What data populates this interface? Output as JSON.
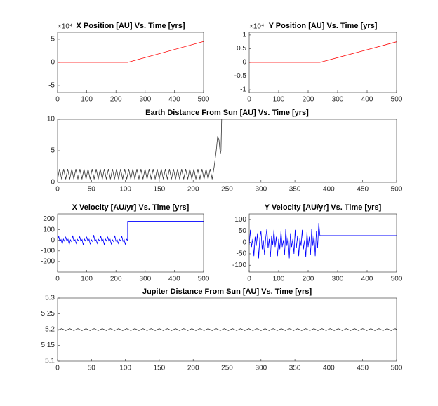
{
  "chart_data": [
    {
      "type": "line",
      "title": "X Position [AU] Vs. Time [yrs]",
      "exponent_label": "×10⁴",
      "color": "#ff0000",
      "x": [
        0,
        240,
        500
      ],
      "values": [
        0,
        0,
        4.5
      ],
      "xlim": [
        0,
        500
      ],
      "ylim": [
        -6.5,
        6.5
      ],
      "xticks": [
        0,
        100,
        200,
        300,
        400,
        500
      ],
      "yticks": [
        -5,
        0,
        5
      ]
    },
    {
      "type": "line",
      "title": "Y Position [AU] Vs. Time [yrs]",
      "exponent_label": "×10⁴",
      "color": "#ff0000",
      "x": [
        0,
        240,
        500
      ],
      "values": [
        0,
        0,
        0.75
      ],
      "xlim": [
        0,
        500
      ],
      "ylim": [
        -1.1,
        1.1
      ],
      "xticks": [
        0,
        100,
        200,
        300,
        400,
        500
      ],
      "yticks": [
        -1,
        -0.5,
        0,
        0.5,
        1
      ]
    },
    {
      "type": "line",
      "title": "Earth Distance From Sun [AU] Vs. Time [yrs]",
      "color": "#333333",
      "x": [
        0,
        3,
        6,
        9,
        12,
        15,
        18,
        21,
        24,
        27,
        30,
        33,
        36,
        39,
        42,
        45,
        48,
        51,
        54,
        57,
        60,
        63,
        66,
        69,
        72,
        75,
        78,
        81,
        84,
        87,
        90,
        93,
        96,
        99,
        102,
        105,
        108,
        111,
        114,
        117,
        120,
        123,
        126,
        129,
        132,
        135,
        138,
        141,
        144,
        147,
        150,
        153,
        156,
        159,
        162,
        165,
        168,
        171,
        174,
        177,
        180,
        183,
        186,
        189,
        192,
        195,
        198,
        201,
        204,
        207,
        210,
        213,
        216,
        219,
        222,
        225,
        228,
        231,
        234,
        236,
        238,
        240,
        241,
        242
      ],
      "values": [
        0.5,
        2.1,
        0.5,
        2.1,
        0.5,
        2.1,
        0.5,
        2.1,
        0.5,
        2.1,
        0.5,
        2.1,
        0.5,
        2.1,
        0.5,
        2.1,
        0.5,
        2.1,
        0.5,
        2.1,
        0.5,
        2.1,
        0.5,
        2.1,
        0.5,
        2.1,
        0.5,
        2.1,
        0.5,
        2.1,
        0.5,
        2.1,
        0.5,
        2.1,
        0.5,
        2.1,
        0.5,
        2.1,
        0.5,
        2.1,
        0.5,
        2.1,
        0.5,
        2.1,
        0.5,
        2.1,
        0.5,
        2.1,
        0.5,
        2.1,
        0.5,
        2.1,
        0.5,
        2.1,
        0.5,
        2.1,
        0.5,
        2.1,
        0.5,
        2.1,
        0.5,
        2.1,
        0.5,
        2.1,
        0.5,
        2.1,
        0.5,
        2.1,
        0.5,
        2.1,
        0.5,
        2.1,
        0.5,
        2.1,
        0.5,
        2.1,
        0.5,
        2.5,
        5,
        7.2,
        6.8,
        4.5,
        5,
        10
      ],
      "xlim": [
        0,
        500
      ],
      "ylim": [
        0,
        10
      ],
      "xticks": [
        0,
        50,
        100,
        150,
        200,
        250,
        300,
        350,
        400,
        450,
        500
      ],
      "yticks": [
        0,
        5,
        10
      ]
    },
    {
      "type": "line",
      "title": "X Velocity [AU/yr] Vs. Time [yrs]",
      "color": "#0000ff",
      "x": [
        0,
        4,
        8,
        12,
        16,
        20,
        24,
        28,
        32,
        36,
        40,
        44,
        48,
        52,
        56,
        60,
        64,
        68,
        72,
        76,
        80,
        84,
        88,
        92,
        96,
        100,
        104,
        108,
        112,
        116,
        120,
        124,
        128,
        132,
        136,
        140,
        144,
        148,
        152,
        156,
        160,
        164,
        168,
        172,
        176,
        180,
        184,
        188,
        192,
        196,
        200,
        204,
        208,
        212,
        216,
        220,
        224,
        228,
        232,
        236,
        240,
        240,
        500
      ],
      "values": [
        -5,
        40,
        -10,
        8,
        -35,
        12,
        -8,
        30,
        -6,
        10,
        -40,
        5,
        -12,
        45,
        -8,
        6,
        -30,
        10,
        -5,
        35,
        -10,
        8,
        -45,
        12,
        -6,
        30,
        -8,
        10,
        -38,
        5,
        -12,
        50,
        -8,
        6,
        -30,
        10,
        -5,
        40,
        -10,
        8,
        -42,
        12,
        -6,
        30,
        -8,
        10,
        -35,
        5,
        -12,
        45,
        -8,
        6,
        -30,
        10,
        -5,
        40,
        -10,
        8,
        -40,
        12,
        0,
        180,
        180
      ],
      "xlim": [
        0,
        500
      ],
      "ylim": [
        -300,
        250
      ],
      "xticks": [
        0,
        100,
        200,
        300,
        400,
        500
      ],
      "yticks": [
        -200,
        -100,
        0,
        100,
        200
      ]
    },
    {
      "type": "line",
      "title": "Y Velocity [AU/yr] Vs. Time [yrs]",
      "color": "#0000ff",
      "x": [
        0,
        4,
        8,
        12,
        16,
        20,
        24,
        28,
        32,
        36,
        40,
        44,
        48,
        52,
        56,
        60,
        64,
        68,
        72,
        76,
        80,
        84,
        88,
        92,
        96,
        100,
        104,
        108,
        112,
        116,
        120,
        124,
        128,
        132,
        136,
        140,
        144,
        148,
        152,
        156,
        160,
        164,
        168,
        172,
        176,
        180,
        184,
        188,
        192,
        196,
        200,
        204,
        208,
        212,
        216,
        220,
        224,
        228,
        232,
        236,
        240,
        500
      ],
      "values": [
        -10,
        55,
        -20,
        15,
        -60,
        25,
        -15,
        40,
        -70,
        20,
        50,
        -30,
        10,
        -55,
        20,
        60,
        -25,
        15,
        -65,
        30,
        -10,
        55,
        -20,
        25,
        -60,
        15,
        -30,
        50,
        -20,
        10,
        -55,
        60,
        -15,
        25,
        -70,
        40,
        -20,
        15,
        -50,
        55,
        -25,
        30,
        -60,
        20,
        -15,
        55,
        -30,
        10,
        -65,
        45,
        -20,
        25,
        -55,
        60,
        -15,
        30,
        -60,
        50,
        -25,
        85,
        30,
        30
      ],
      "xlim": [
        0,
        500
      ],
      "ylim": [
        -130,
        125
      ],
      "xticks": [
        0,
        100,
        200,
        300,
        400,
        500
      ],
      "yticks": [
        -100,
        -50,
        0,
        50,
        100
      ]
    },
    {
      "type": "line",
      "title": "Jupiter Distance From Sun [AU] Vs. Time [yrs]",
      "color": "#222222",
      "x": [
        0,
        6,
        12,
        18,
        24,
        30,
        36,
        42,
        48,
        54,
        60,
        66,
        72,
        78,
        84,
        90,
        96,
        102,
        108,
        114,
        120,
        126,
        132,
        138,
        144,
        150,
        156,
        162,
        168,
        174,
        180,
        186,
        192,
        198,
        204,
        210,
        216,
        222,
        228,
        234,
        240,
        246,
        252,
        258,
        264,
        270,
        276,
        282,
        288,
        294,
        300,
        306,
        312,
        318,
        324,
        330,
        336,
        342,
        348,
        354,
        360,
        366,
        372,
        378,
        384,
        390,
        396,
        402,
        408,
        414,
        420,
        426,
        432,
        438,
        444,
        450,
        456,
        462,
        468,
        474,
        480,
        486,
        492,
        498,
        500
      ],
      "values": [
        5.197,
        5.203,
        5.197,
        5.203,
        5.197,
        5.203,
        5.197,
        5.203,
        5.197,
        5.203,
        5.197,
        5.203,
        5.197,
        5.203,
        5.197,
        5.203,
        5.197,
        5.203,
        5.197,
        5.203,
        5.197,
        5.203,
        5.197,
        5.203,
        5.197,
        5.203,
        5.197,
        5.203,
        5.197,
        5.203,
        5.197,
        5.203,
        5.197,
        5.203,
        5.197,
        5.203,
        5.197,
        5.203,
        5.197,
        5.203,
        5.197,
        5.203,
        5.197,
        5.203,
        5.197,
        5.203,
        5.197,
        5.203,
        5.197,
        5.203,
        5.197,
        5.203,
        5.197,
        5.203,
        5.197,
        5.203,
        5.197,
        5.203,
        5.197,
        5.203,
        5.197,
        5.203,
        5.197,
        5.203,
        5.197,
        5.203,
        5.197,
        5.203,
        5.197,
        5.203,
        5.197,
        5.203,
        5.197,
        5.203,
        5.197,
        5.203,
        5.197,
        5.203,
        5.197,
        5.203,
        5.197,
        5.203,
        5.197,
        5.203,
        5.2
      ],
      "xlim": [
        0,
        500
      ],
      "ylim": [
        5.1,
        5.3
      ],
      "xticks": [
        0,
        50,
        100,
        150,
        200,
        250,
        300,
        350,
        400,
        450,
        500
      ],
      "yticks": [
        5.1,
        5.15,
        5.2,
        5.25,
        5.3
      ]
    }
  ]
}
